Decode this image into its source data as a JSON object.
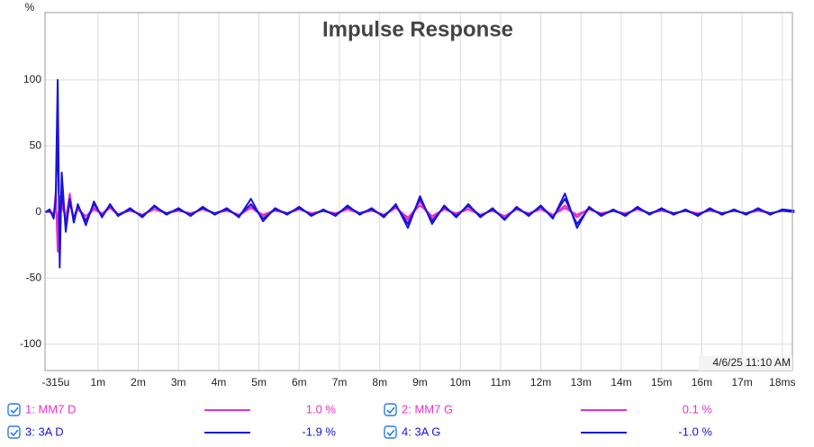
{
  "chart_data": {
    "type": "line",
    "title": "Impulse Response",
    "y_label": "%",
    "annotation": "4/6/25 11:10 AM",
    "grid": true,
    "xlim": [
      -0.315,
      18.25
    ],
    "ylim": [
      -120,
      151
    ],
    "xticks": [
      {
        "value": -0.315,
        "label": "-315u"
      },
      {
        "value": 1,
        "label": "1m"
      },
      {
        "value": 2,
        "label": "2m"
      },
      {
        "value": 3,
        "label": "3m"
      },
      {
        "value": 4,
        "label": "4m"
      },
      {
        "value": 5,
        "label": "5m"
      },
      {
        "value": 6,
        "label": "6m"
      },
      {
        "value": 7,
        "label": "7m"
      },
      {
        "value": 8,
        "label": "8m"
      },
      {
        "value": 9,
        "label": "9m"
      },
      {
        "value": 10,
        "label": "10m"
      },
      {
        "value": 11,
        "label": "11m"
      },
      {
        "value": 12,
        "label": "12m"
      },
      {
        "value": 13,
        "label": "13m"
      },
      {
        "value": 14,
        "label": "14m"
      },
      {
        "value": 15,
        "label": "15m"
      },
      {
        "value": 16,
        "label": "16m"
      },
      {
        "value": 17,
        "label": "17m"
      },
      {
        "value": 18,
        "label": "18ms"
      }
    ],
    "yticks": [
      100,
      50,
      0,
      -50,
      -100
    ],
    "x": [
      -0.3,
      -0.2,
      -0.1,
      -0.05,
      0,
      0.05,
      0.1,
      0.2,
      0.3,
      0.4,
      0.5,
      0.7,
      0.9,
      1.1,
      1.3,
      1.5,
      1.8,
      2.1,
      2.4,
      2.7,
      3.0,
      3.3,
      3.6,
      3.9,
      4.2,
      4.5,
      4.8,
      5.1,
      5.4,
      5.7,
      6.0,
      6.3,
      6.6,
      6.9,
      7.2,
      7.5,
      7.8,
      8.1,
      8.4,
      8.7,
      9.0,
      9.3,
      9.6,
      9.9,
      10.2,
      10.5,
      10.8,
      11.1,
      11.4,
      11.7,
      12.0,
      12.3,
      12.6,
      12.9,
      13.2,
      13.5,
      13.8,
      14.1,
      14.4,
      14.7,
      15.0,
      15.3,
      15.6,
      15.9,
      16.2,
      16.5,
      16.8,
      17.1,
      17.4,
      17.7,
      18.0,
      18.3
    ],
    "series": [
      {
        "name": "1: MM7 D",
        "color": "#e830c8",
        "legend_value": "1.0 %",
        "values": [
          0,
          1,
          -3,
          15,
          -30,
          12,
          8,
          -5,
          14,
          -8,
          4,
          -6,
          3,
          -2,
          5,
          -3,
          2,
          -3,
          4,
          -1,
          2,
          -2,
          3,
          -1,
          2,
          -3,
          4,
          -3,
          2,
          -1,
          3,
          -2,
          1,
          -2,
          3,
          -1,
          2,
          -3,
          4,
          -6,
          8,
          -5,
          3,
          -2,
          4,
          -3,
          2,
          -5,
          3,
          -2,
          4,
          -3,
          5,
          -4,
          3,
          -2,
          1,
          -2,
          3,
          -1,
          2,
          -1,
          1,
          -2,
          2,
          -1,
          1,
          -1,
          2,
          -1,
          1,
          0
        ]
      },
      {
        "name": "2: MM7 G",
        "color": "#e830c8",
        "legend_value": "0.1 %",
        "values": [
          0,
          0,
          -1,
          6,
          -10,
          8,
          4,
          -3,
          6,
          -4,
          2,
          -3,
          2,
          -1,
          3,
          -2,
          1,
          -2,
          2,
          -1,
          1,
          -1,
          2,
          -1,
          1,
          -2,
          3,
          -2,
          1,
          -1,
          2,
          -1,
          1,
          -1,
          2,
          -1,
          1,
          -2,
          3,
          -4,
          5,
          -3,
          2,
          -1,
          2,
          -2,
          1,
          -3,
          2,
          -1,
          2,
          -2,
          3,
          -2,
          2,
          -1,
          1,
          -1,
          2,
          -1,
          1,
          -1,
          1,
          -1,
          1,
          -1,
          1,
          -1,
          1,
          -1,
          1,
          0
        ]
      },
      {
        "name": "3: 3A D",
        "color": "#1a14d8",
        "legend_value": "-1.9 %",
        "values": [
          0,
          2,
          -5,
          10,
          100,
          -42,
          30,
          -15,
          10,
          -8,
          6,
          -10,
          8,
          -4,
          6,
          -3,
          3,
          -4,
          5,
          -2,
          3,
          -3,
          4,
          -2,
          3,
          -4,
          10,
          -7,
          3,
          -2,
          4,
          -3,
          2,
          -3,
          5,
          -2,
          3,
          -4,
          6,
          -12,
          12,
          -9,
          5,
          -4,
          6,
          -4,
          3,
          -6,
          4,
          -3,
          5,
          -5,
          14,
          -12,
          4,
          -3,
          2,
          -3,
          4,
          -2,
          3,
          -2,
          2,
          -3,
          3,
          -2,
          2,
          -2,
          3,
          -2,
          2,
          1
        ]
      },
      {
        "name": "4: 3A G",
        "color": "#1a14d8",
        "legend_value": "-1.0 %",
        "values": [
          0,
          1,
          -3,
          8,
          60,
          -25,
          18,
          -10,
          8,
          -5,
          5,
          -7,
          6,
          -3,
          5,
          -2,
          2,
          -3,
          4,
          -1,
          2,
          -2,
          3,
          -1,
          2,
          -3,
          6,
          -5,
          2,
          -1,
          3,
          -2,
          1,
          -2,
          4,
          -1,
          2,
          -3,
          5,
          -9,
          10,
          -7,
          4,
          -3,
          5,
          -3,
          2,
          -5,
          3,
          -2,
          4,
          -4,
          10,
          -9,
          3,
          -2,
          1,
          -2,
          3,
          -1,
          2,
          -1,
          1,
          -2,
          2,
          -1,
          1,
          -1,
          2,
          -1,
          1,
          0
        ]
      }
    ]
  }
}
